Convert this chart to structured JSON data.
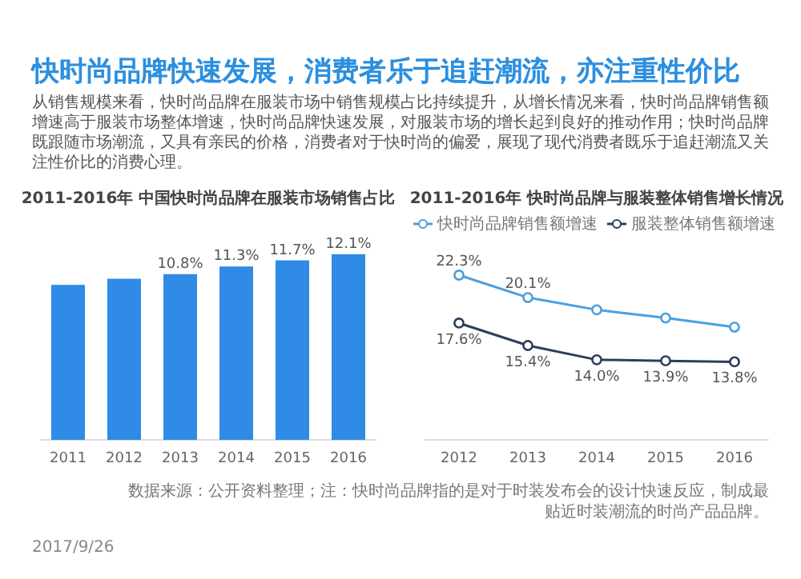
{
  "chart_data": [
    {
      "type": "other",
      "title": "快时尚品牌快速发展，消费者乐于追赶潮流，亦注重性价比",
      "subtitle": "从销售规模来看，快时尚品牌在服装市场中销售规模占比持续提升，从增长情况来看，快时尚品牌销售额增速高于服装市场整体增速，快时尚品牌快速发展，对服装市场的增长起到良好的推动作用；快时尚品牌既跟随市场潮流，又具有亲民的价格，消费者对于快时尚的偏爱，展现了现代消费者既乐于追赶潮流又关注性价比的消费心理。",
      "annotations": [
        "数据来源：公开资料整理；注：快时尚品牌指的是对于时装发布会的设计快速反应，制成最贴近时装潮流的时尚产品品牌。",
        "2017/9/26"
      ]
    },
    {
      "type": "bar",
      "title": "2011-2016年 中国快时尚品牌在服装市场销售占比",
      "categories": [
        "2011",
        "2012",
        "2013",
        "2014",
        "2015",
        "2016"
      ],
      "values": [
        10.1,
        10.5,
        10.8,
        11.3,
        11.7,
        12.1
      ],
      "value_labels": [
        null,
        null,
        "10.8%",
        "11.3%",
        "11.7%",
        "12.1%"
      ],
      "color": "#2f8be6"
    },
    {
      "type": "line",
      "title": "2011-2016年 快时尚品牌与服装整体销售增长情况",
      "categories": [
        "2012",
        "2013",
        "2014",
        "2015",
        "2016"
      ],
      "legend": "top",
      "marker": "circle",
      "series": [
        {
          "name": "快时尚品牌销售额增速",
          "color": "#4a9fe0",
          "values": [
            22.3,
            20.1,
            18.9,
            18.1,
            17.2
          ],
          "value_labels": [
            "22.3%",
            "20.1%",
            null,
            null,
            null
          ]
        },
        {
          "name": "服装整体销售额增速",
          "color": "#2c3e5a",
          "values": [
            17.6,
            15.4,
            14.0,
            13.9,
            13.8
          ],
          "value_labels": [
            "17.6%",
            "15.4%",
            "14.0%",
            "13.9%",
            "13.8%"
          ]
        }
      ]
    }
  ]
}
